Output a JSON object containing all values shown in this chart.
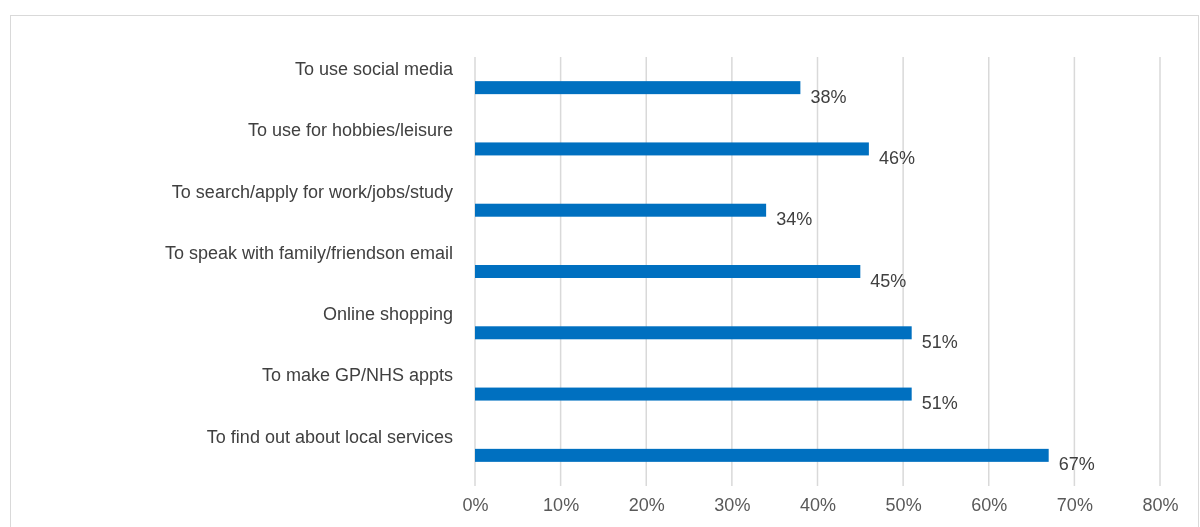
{
  "chart_data": {
    "type": "bar",
    "orientation": "horizontal",
    "categories": [
      "To use social media",
      "To use for hobbies/leisure",
      "To search/apply for work/jobs/study",
      "To speak with family/friendson email",
      "Online shopping",
      "To make GP/NHS appts",
      "To find out about local services"
    ],
    "values": [
      38,
      46,
      34,
      45,
      51,
      51,
      67
    ],
    "color": "#0070c0",
    "xlim": [
      0,
      80
    ],
    "xticks": [
      {
        "value": 0,
        "label": "0%"
      },
      {
        "value": 10,
        "label": "10%"
      },
      {
        "value": 20,
        "label": "20%"
      },
      {
        "value": 30,
        "label": "30%"
      },
      {
        "value": 40,
        "label": "40%"
      },
      {
        "value": 50,
        "label": "50%"
      },
      {
        "value": 60,
        "label": "60%"
      },
      {
        "value": 70,
        "label": "70%"
      },
      {
        "value": 80,
        "label": "80%"
      }
    ],
    "value_labels": [
      "38%",
      "46%",
      "34%",
      "45%",
      "51%",
      "51%",
      "67%"
    ],
    "grid": "x"
  }
}
